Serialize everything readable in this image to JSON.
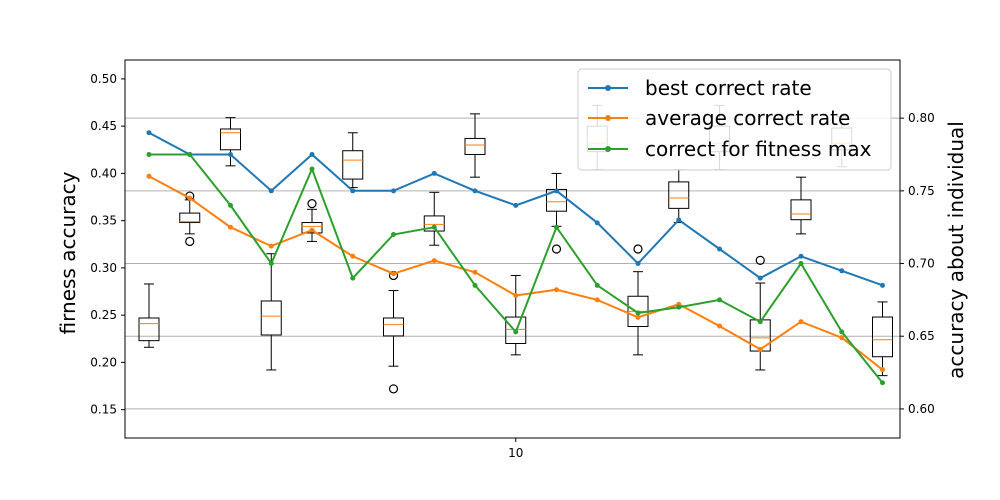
{
  "chart_data": {
    "type": "box+line",
    "xlabel": "",
    "x_ticks": [
      10
    ],
    "left_axis": {
      "label": "firness accuracy",
      "ylim": [
        0.12,
        0.52
      ],
      "ticks": [
        0.15,
        0.2,
        0.25,
        0.3,
        0.35,
        0.4,
        0.45,
        0.5
      ],
      "tick_labels": [
        "0.15",
        "0.20",
        "0.25",
        "0.30",
        "0.35",
        "0.40",
        "0.45",
        "0.50"
      ]
    },
    "right_axis": {
      "label": "accuracy about individual",
      "ylim": [
        0.58,
        0.84
      ],
      "ticks": [
        0.6,
        0.65,
        0.7,
        0.75,
        0.8
      ],
      "tick_labels": [
        "0.60",
        "0.65",
        "0.70",
        "0.75",
        "0.80"
      ],
      "grid": true
    },
    "boxes": [
      {
        "x": 1,
        "whislo": 0.216,
        "q1": 0.223,
        "med": 0.241,
        "q3": 0.247,
        "whishi": 0.283,
        "fliers": []
      },
      {
        "x": 2,
        "whislo": 0.336,
        "q1": 0.348,
        "med": 0.349,
        "q3": 0.358,
        "whishi": 0.372,
        "fliers": [
          0.328,
          0.376
        ]
      },
      {
        "x": 3,
        "whislo": 0.408,
        "q1": 0.425,
        "med": 0.443,
        "q3": 0.447,
        "whishi": 0.459,
        "fliers": []
      },
      {
        "x": 4,
        "whislo": 0.192,
        "q1": 0.229,
        "med": 0.249,
        "q3": 0.265,
        "whishi": 0.315,
        "fliers": []
      },
      {
        "x": 5,
        "whislo": 0.328,
        "q1": 0.337,
        "med": 0.344,
        "q3": 0.348,
        "whishi": 0.362,
        "fliers": [
          0.368
        ]
      },
      {
        "x": 6,
        "whislo": 0.385,
        "q1": 0.394,
        "med": 0.414,
        "q3": 0.424,
        "whishi": 0.443,
        "fliers": []
      },
      {
        "x": 7,
        "whislo": 0.196,
        "q1": 0.228,
        "med": 0.24,
        "q3": 0.247,
        "whishi": 0.276,
        "fliers": [
          0.292,
          0.172
        ]
      },
      {
        "x": 8,
        "whislo": 0.324,
        "q1": 0.339,
        "med": 0.346,
        "q3": 0.355,
        "whishi": 0.38,
        "fliers": []
      },
      {
        "x": 9,
        "whislo": 0.396,
        "q1": 0.42,
        "med": 0.43,
        "q3": 0.437,
        "whishi": 0.463,
        "fliers": []
      },
      {
        "x": 10,
        "whislo": 0.208,
        "q1": 0.22,
        "med": 0.235,
        "q3": 0.248,
        "whishi": 0.292,
        "fliers": []
      },
      {
        "x": 11,
        "whislo": 0.344,
        "q1": 0.36,
        "med": 0.37,
        "q3": 0.383,
        "whishi": 0.4,
        "fliers": [
          0.32
        ]
      },
      {
        "x": 12,
        "whislo": 0.404,
        "q1": 0.423,
        "med": 0.432,
        "q3": 0.45,
        "whishi": 0.472,
        "fliers": []
      },
      {
        "x": 13,
        "whislo": 0.208,
        "q1": 0.238,
        "med": 0.254,
        "q3": 0.27,
        "whishi": 0.296,
        "fliers": [
          0.32
        ]
      },
      {
        "x": 14,
        "whislo": 0.348,
        "q1": 0.363,
        "med": 0.374,
        "q3": 0.391,
        "whishi": 0.404,
        "fliers": []
      },
      {
        "x": 15,
        "whislo": 0.404,
        "q1": 0.423,
        "med": 0.432,
        "q3": 0.45,
        "whishi": 0.472,
        "fliers": []
      },
      {
        "x": 16,
        "whislo": 0.192,
        "q1": 0.212,
        "med": 0.226,
        "q3": 0.245,
        "whishi": 0.284,
        "fliers": [
          0.308
        ]
      },
      {
        "x": 17,
        "whislo": 0.336,
        "q1": 0.351,
        "med": 0.357,
        "q3": 0.372,
        "whishi": 0.396,
        "fliers": []
      },
      {
        "x": 18,
        "whislo": 0.407,
        "q1": 0.425,
        "med": 0.432,
        "q3": 0.448,
        "whishi": 0.46,
        "fliers": []
      },
      {
        "x": 19,
        "whislo": 0.186,
        "q1": 0.206,
        "med": 0.224,
        "q3": 0.248,
        "whishi": 0.264,
        "fliers": []
      }
    ],
    "series": [
      {
        "name": "best correct rate",
        "color": "#1f77b4",
        "axis": "right",
        "values": [
          0.79,
          0.775,
          0.775,
          0.75,
          0.775,
          0.75,
          0.75,
          0.762,
          0.75,
          0.74,
          0.75,
          0.728,
          0.7,
          0.73,
          0.71,
          0.69,
          0.705,
          0.695,
          0.685
        ]
      },
      {
        "name": "average correct rate",
        "color": "#ff7f0e",
        "axis": "right",
        "values": [
          0.76,
          0.745,
          0.725,
          0.712,
          0.723,
          0.705,
          0.693,
          0.702,
          0.694,
          0.678,
          0.682,
          0.675,
          0.663,
          0.672,
          0.657,
          0.641,
          0.66,
          0.649,
          0.627
        ]
      },
      {
        "name": "correct for fitness max",
        "color": "#2ca02c",
        "axis": "right",
        "values": [
          0.775,
          0.775,
          0.74,
          0.7,
          0.765,
          0.69,
          0.72,
          0.725,
          0.685,
          0.653,
          0.725,
          0.685,
          0.666,
          0.67,
          0.675,
          0.66,
          0.7,
          0.653,
          0.618
        ]
      }
    ],
    "legend_position": "top-right",
    "colors": {
      "box": "#000000",
      "median": "#ff7f0e",
      "grid": "#b0b0b0"
    }
  }
}
